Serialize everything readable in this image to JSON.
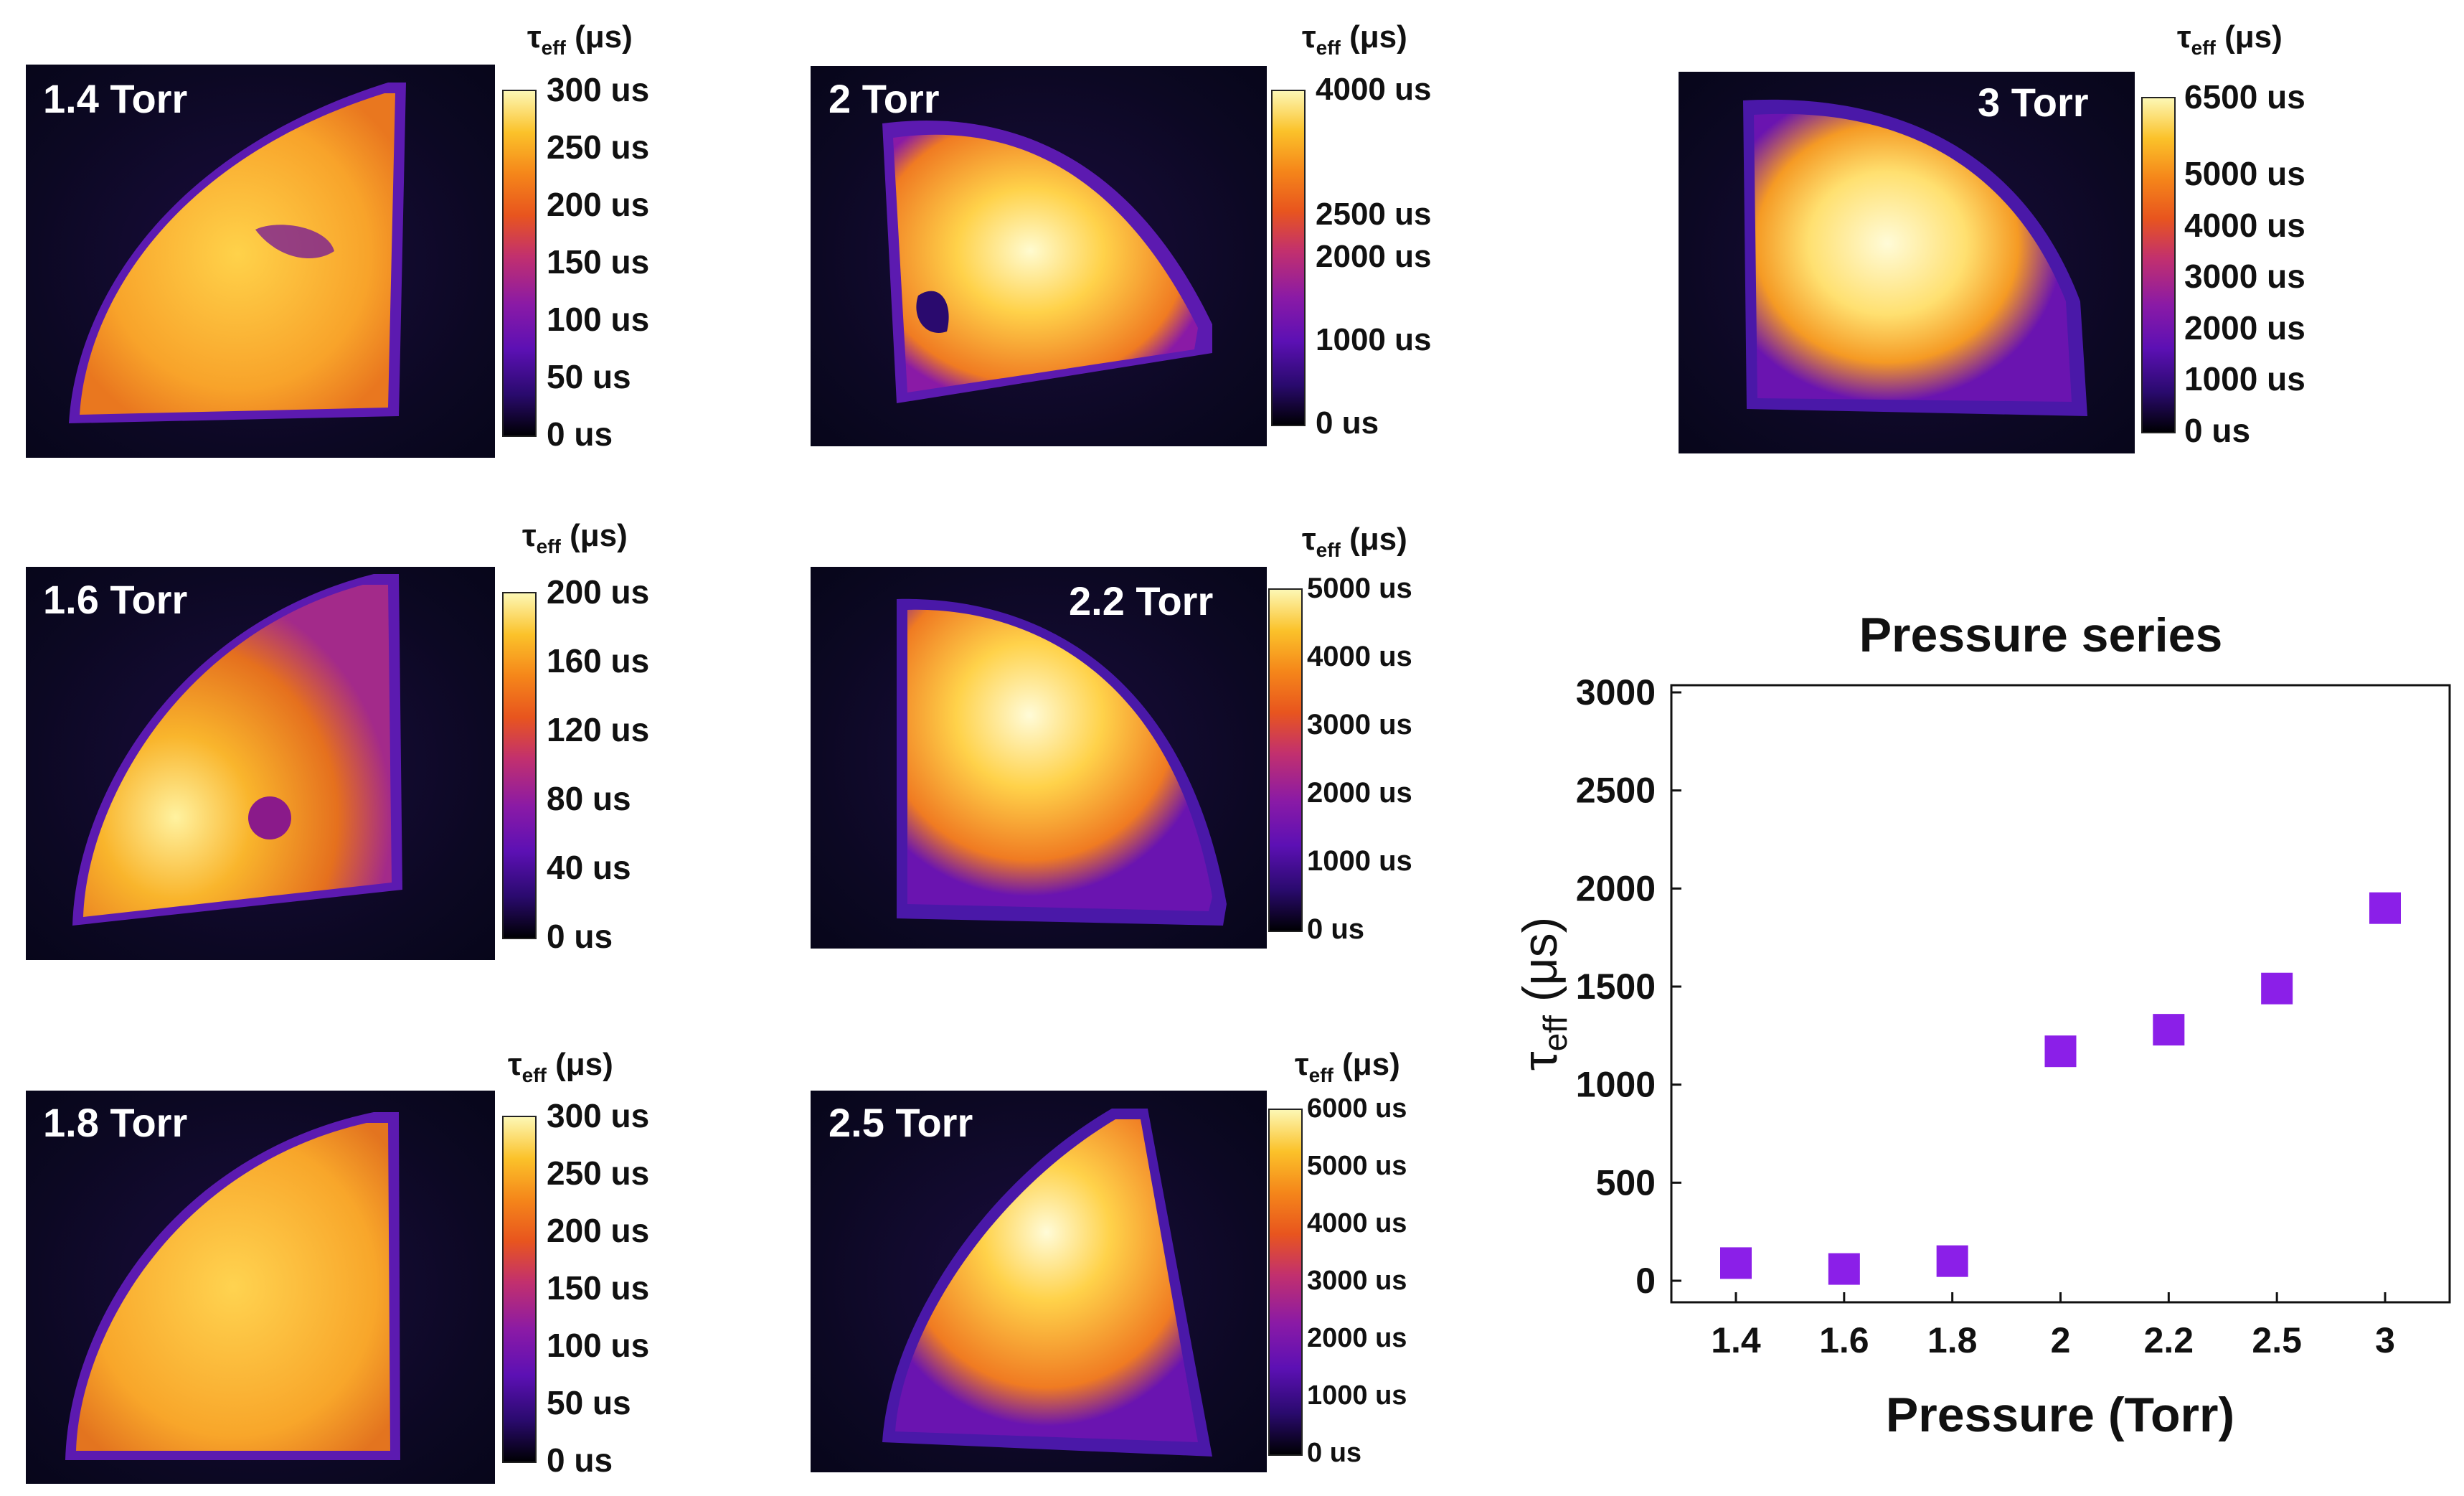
{
  "panels": [
    {
      "id": "p14",
      "label": "1.4 Torr",
      "cbar_title": "τ",
      "cbar_sub": "eff",
      "cbar_unit": " (μs)",
      "ticks": [
        {
          "t": "300 us",
          "f": 1.0
        },
        {
          "t": "250 us",
          "f": 0.8333
        },
        {
          "t": "200 us",
          "f": 0.6667
        },
        {
          "t": "150 us",
          "f": 0.5
        },
        {
          "t": "100 us",
          "f": 0.3333
        },
        {
          "t": "50 us",
          "f": 0.1667
        },
        {
          "t": "0 us",
          "f": 0.0
        }
      ]
    },
    {
      "id": "p20",
      "label": "2 Torr",
      "cbar_title": "τ",
      "cbar_sub": "eff",
      "cbar_unit": " (μs)",
      "ticks": [
        {
          "t": "4000 us",
          "f": 1.0
        },
        {
          "t": "2500 us",
          "f": 0.625
        },
        {
          "t": "2000 us",
          "f": 0.5
        },
        {
          "t": "1000 us",
          "f": 0.25
        },
        {
          "t": "0 us",
          "f": 0.0
        }
      ]
    },
    {
      "id": "p30",
      "label": "3 Torr",
      "cbar_title": "τ",
      "cbar_sub": "eff",
      "cbar_unit": " (μs)",
      "ticks": [
        {
          "t": "6500 us",
          "f": 1.0
        },
        {
          "t": "5000 us",
          "f": 0.7692
        },
        {
          "t": "4000 us",
          "f": 0.6154
        },
        {
          "t": "3000 us",
          "f": 0.4615
        },
        {
          "t": "2000 us",
          "f": 0.3077
        },
        {
          "t": "1000 us",
          "f": 0.1538
        },
        {
          "t": "0 us",
          "f": 0.0
        }
      ]
    },
    {
      "id": "p16",
      "label": "1.6 Torr",
      "cbar_title": "τ",
      "cbar_sub": "eff",
      "cbar_unit": " (μs)",
      "ticks": [
        {
          "t": "200 us",
          "f": 1.0
        },
        {
          "t": "160 us",
          "f": 0.8
        },
        {
          "t": "120 us",
          "f": 0.6
        },
        {
          "t": "80 us",
          "f": 0.4
        },
        {
          "t": "40 us",
          "f": 0.2
        },
        {
          "t": "0 us",
          "f": 0.0
        }
      ]
    },
    {
      "id": "p22",
      "label": "2.2 Torr",
      "cbar_title": "τ",
      "cbar_sub": "eff",
      "cbar_unit": " (μs)",
      "ticks": [
        {
          "t": "5000 us",
          "f": 1.0
        },
        {
          "t": "4000 us",
          "f": 0.8
        },
        {
          "t": "3000 us",
          "f": 0.6
        },
        {
          "t": "2000 us",
          "f": 0.4
        },
        {
          "t": "1000 us",
          "f": 0.2
        },
        {
          "t": "0 us",
          "f": 0.0
        }
      ]
    },
    {
      "id": "p18",
      "label": "1.8 Torr",
      "cbar_title": "τ",
      "cbar_sub": "eff",
      "cbar_unit": " (μs)",
      "ticks": [
        {
          "t": "300 us",
          "f": 1.0
        },
        {
          "t": "250 us",
          "f": 0.8333
        },
        {
          "t": "200 us",
          "f": 0.6667
        },
        {
          "t": "150 us",
          "f": 0.5
        },
        {
          "t": "100 us",
          "f": 0.3333
        },
        {
          "t": "50 us",
          "f": 0.1667
        },
        {
          "t": "0 us",
          "f": 0.0
        }
      ]
    },
    {
      "id": "p25",
      "label": "2.5 Torr",
      "cbar_title": "τ",
      "cbar_sub": "eff",
      "cbar_unit": " (μs)",
      "ticks": [
        {
          "t": "6000 us",
          "f": 1.0
        },
        {
          "t": "5000 us",
          "f": 0.8333
        },
        {
          "t": "4000 us",
          "f": 0.6667
        },
        {
          "t": "3000 us",
          "f": 0.5
        },
        {
          "t": "2000 us",
          "f": 0.3333
        },
        {
          "t": "1000 us",
          "f": 0.1667
        },
        {
          "t": "0 us",
          "f": 0.0
        }
      ]
    }
  ],
  "chart_data": {
    "type": "scatter",
    "title": "Pressure series",
    "xlabel": "Pressure (Torr)",
    "ylabel_main": "τ",
    "ylabel_sub": "eff",
    "ylabel_unit": " (μs)",
    "categories": [
      "1.4",
      "1.6",
      "1.8",
      "2",
      "2.2",
      "2.5",
      "3"
    ],
    "values": [
      90,
      60,
      100,
      1170,
      1280,
      1490,
      1900
    ],
    "ylim": [
      0,
      3000
    ],
    "yticks": [
      0,
      500,
      1000,
      1500,
      2000,
      2500,
      3000
    ],
    "marker": "square",
    "marker_color": "#8b1fe8",
    "grid": false,
    "legend": "none"
  }
}
